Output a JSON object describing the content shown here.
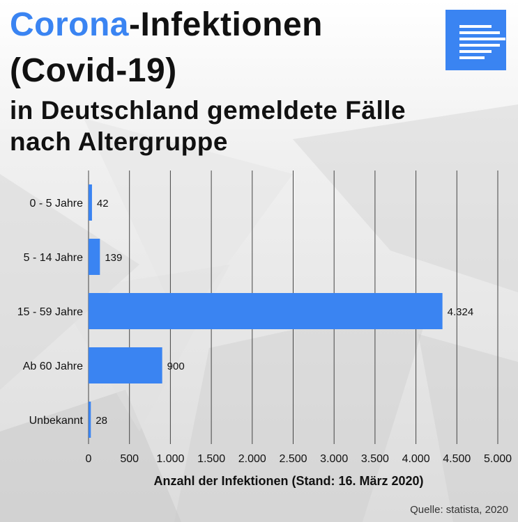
{
  "header": {
    "title_accent": "Corona",
    "title_rest": "-Infektionen",
    "title_line2": "(Covid-19)",
    "subtitle_line1": "in Deutschland gemeldete Fälle",
    "subtitle_line2": "nach Altergruppe"
  },
  "logo": {
    "icon": "statista-logo-icon",
    "color": "#3a84f2"
  },
  "source": "Quelle: statista, 2020",
  "colors": {
    "bar": "#3a84f2",
    "accent": "#3a84f2",
    "grid": "#444444",
    "text": "#111111"
  },
  "chart_data": {
    "type": "bar",
    "orientation": "horizontal",
    "categories": [
      "0 - 5 Jahre",
      "5 - 14 Jahre",
      "15 - 59 Jahre",
      "Ab 60 Jahre",
      "Unbekannt"
    ],
    "values": [
      42,
      139,
      4324,
      900,
      28
    ],
    "value_labels": [
      "42",
      "139",
      "4.324",
      "900",
      "28"
    ],
    "xlim": [
      0,
      5000
    ],
    "xticks": [
      0,
      500,
      1000,
      1500,
      2000,
      2500,
      3000,
      3500,
      4000,
      4500,
      5000
    ],
    "xtick_labels": [
      "0",
      "500",
      "1.000",
      "1.500",
      "2.000",
      "2.500",
      "3.000",
      "3.500",
      "4.000",
      "4.500",
      "5.000"
    ],
    "xlabel": "Anzahl der Infektionen (Stand: 16. März 2020)",
    "grid": true
  }
}
